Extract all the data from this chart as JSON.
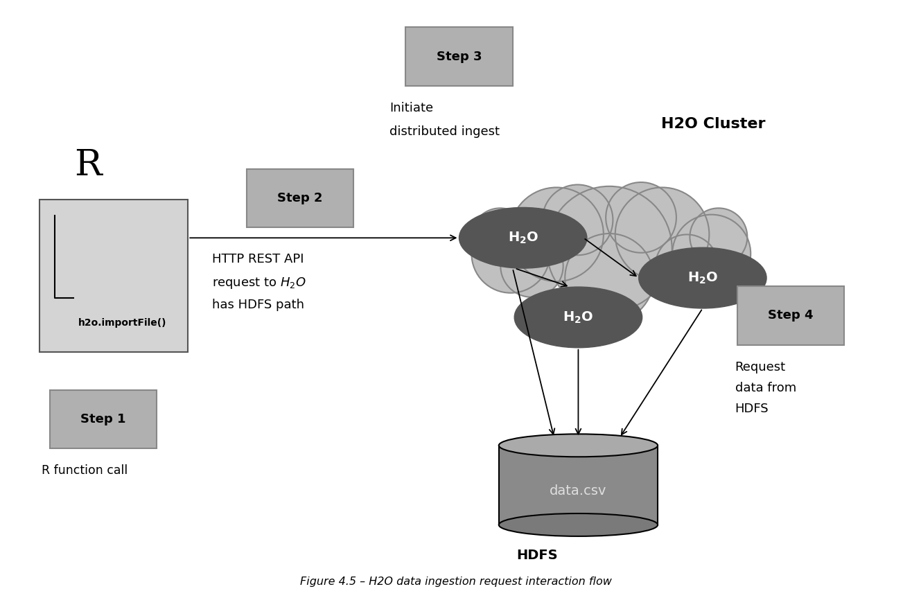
{
  "bg_color": "#ffffff",
  "cloud_color": "#c0c0c0",
  "cloud_edge_color": "#888888",
  "node_color": "#555555",
  "step_box_color": "#b0b0b0",
  "step_box_edge": "#888888",
  "r_box_color": "#d4d4d4",
  "r_box_edge": "#555555",
  "hdfs_body_color": "#8a8a8a",
  "hdfs_top_color": "#aaaaaa",
  "hdfs_bot_color": "#7a7a7a",
  "title": "Figure 4.5 – H2O data ingestion request interaction flow",
  "r_label": "R",
  "r_func": "h2o.importFile()",
  "step1_label": "Step 1",
  "step1_desc": "R function call",
  "step2_label": "Step 2",
  "step2_desc_line1": "HTTP REST API",
  "step2_desc_line2": "request to H$_2$O",
  "step2_desc_line3": "has HDFS path",
  "step3_label": "Step 3",
  "step3_desc_line1": "Initiate",
  "step3_desc_line2": "distributed ingest",
  "step4_label": "Step 4",
  "step4_desc_line1": "Request",
  "step4_desc_line2": "data from",
  "step4_desc_line3": "HDFS",
  "h2o_cluster_label": "H2O Cluster",
  "hdfs_label": "HDFS",
  "hdfs_data": "data.csv",
  "cloud_circles": [
    [
      0.0,
      0.08,
      0.48
    ],
    [
      -0.3,
      0.2,
      0.36
    ],
    [
      -0.56,
      0.04,
      0.3
    ],
    [
      0.3,
      0.2,
      0.36
    ],
    [
      0.58,
      0.04,
      0.3
    ],
    [
      0.0,
      -0.16,
      0.34
    ],
    [
      -0.18,
      0.32,
      0.27
    ],
    [
      0.18,
      0.34,
      0.27
    ],
    [
      -0.44,
      -0.06,
      0.24
    ],
    [
      0.44,
      -0.06,
      0.24
    ],
    [
      -0.62,
      0.18,
      0.22
    ],
    [
      0.62,
      0.18,
      0.22
    ]
  ]
}
